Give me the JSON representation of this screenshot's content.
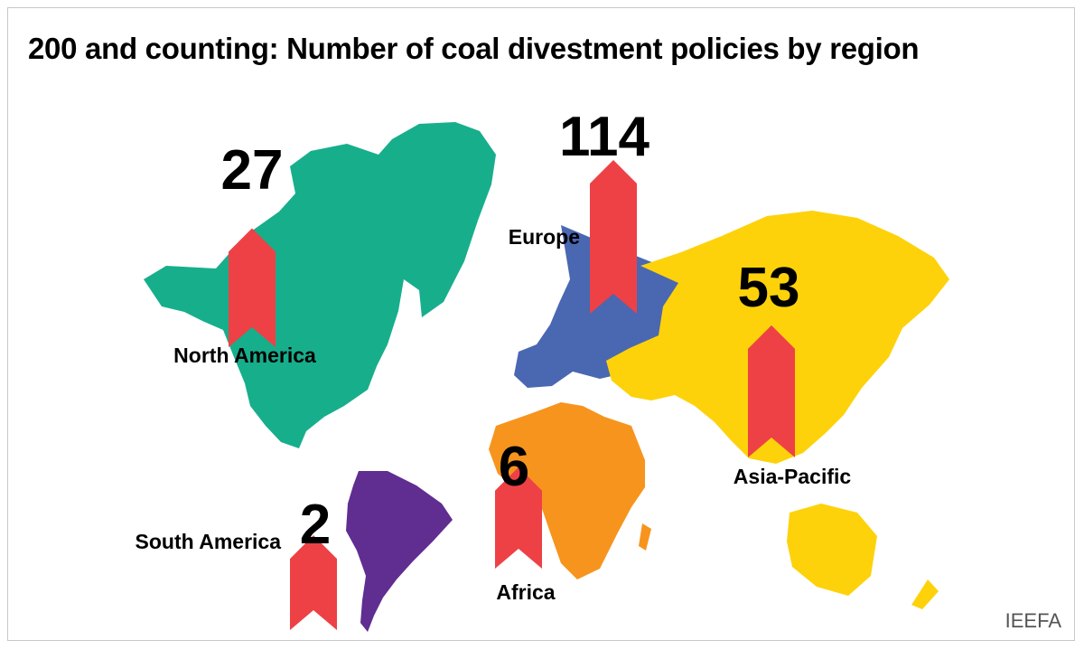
{
  "title": "200 and counting: Number of coal divestment policies by region",
  "source": "IEEFA",
  "colors": {
    "arrow": "#EE4145",
    "north_america": "#17AE8C",
    "europe": "#4A67B2",
    "asia_pacific": "#FDD20A",
    "africa": "#F7941D",
    "south_america": "#602D91"
  },
  "chart_data": {
    "type": "bar",
    "categories": [
      "North America",
      "Europe",
      "Asia-Pacific",
      "Africa",
      "South America"
    ],
    "values": [
      27,
      114,
      53,
      6,
      2
    ],
    "title": "200 and counting: Number of coal divestment policies by region",
    "xlabel": "",
    "ylabel": "",
    "legend": "none",
    "grid": false
  }
}
